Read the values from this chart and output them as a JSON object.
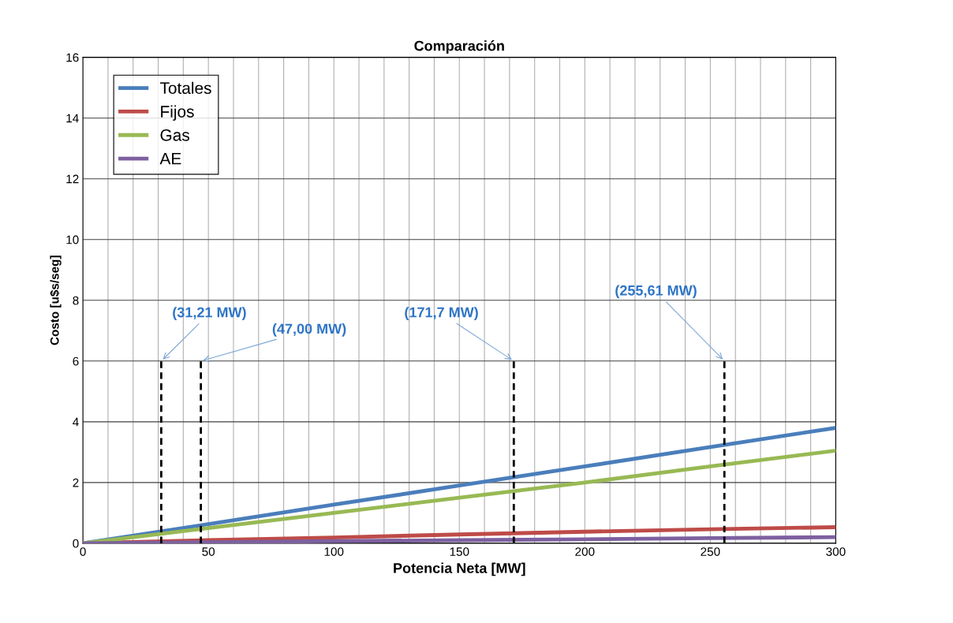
{
  "chart_data": {
    "type": "line",
    "title": "Comparación",
    "xlabel": "Potencia Neta [MW]",
    "ylabel": "Costo [u$s/seg]",
    "x": [
      0,
      50,
      100,
      150,
      200,
      250,
      300
    ],
    "series": [
      {
        "name": "Totales",
        "color": "#4a7ebb",
        "values": [
          0,
          0.63,
          1.27,
          1.9,
          2.53,
          3.17,
          3.8
        ]
      },
      {
        "name": "Fijos",
        "color": "#be4b48",
        "values": [
          0,
          0.1,
          0.19,
          0.29,
          0.38,
          0.46,
          0.53
        ]
      },
      {
        "name": "Gas",
        "color": "#98b954",
        "values": [
          0,
          0.5,
          1.0,
          1.5,
          2.0,
          2.53,
          3.05
        ]
      },
      {
        "name": "AE",
        "color": "#7d60a0",
        "values": [
          0,
          0.03,
          0.07,
          0.1,
          0.13,
          0.17,
          0.2
        ]
      },
      {
        "color": "#000000",
        "line_style": "dashed",
        "x": [
          31.21,
          31.21
        ],
        "values": [
          0,
          6
        ]
      },
      {
        "color": "#000000",
        "line_style": "dashed",
        "x": [
          47.0,
          47.0
        ],
        "values": [
          0,
          6
        ]
      },
      {
        "color": "#000000",
        "line_style": "dashed",
        "x": [
          171.7,
          171.7
        ],
        "values": [
          0,
          6
        ]
      },
      {
        "color": "#000000",
        "line_style": "dashed",
        "x": [
          255.61,
          255.61
        ],
        "values": [
          0,
          6
        ]
      }
    ],
    "annotations": [
      {
        "text": "(31,21 MW)",
        "x": 31.21,
        "y": 6
      },
      {
        "text": "(47,00 MW)",
        "x": 47.0,
        "y": 6
      },
      {
        "text": "(171,7 MW)",
        "x": 171.7,
        "y": 6
      },
      {
        "text": "(255,61 MW)",
        "x": 255.61,
        "y": 6
      }
    ],
    "xlim": [
      0,
      300
    ],
    "xticks": [
      0,
      {
        "value": 10,
        "label": null
      },
      {
        "value": 20,
        "label": null
      },
      {
        "value": 30,
        "label": null
      },
      {
        "value": 40,
        "label": null
      },
      50,
      {
        "value": 60,
        "label": null
      },
      {
        "value": 70,
        "label": null
      },
      {
        "value": 80,
        "label": null
      },
      {
        "value": 90,
        "label": null
      },
      100,
      {
        "value": 110,
        "label": null
      },
      {
        "value": 120,
        "label": null
      },
      {
        "value": 130,
        "label": null
      },
      {
        "value": 140,
        "label": null
      },
      150,
      {
        "value": 160,
        "label": null
      },
      {
        "value": 170,
        "label": null
      },
      {
        "value": 180,
        "label": null
      },
      {
        "value": 190,
        "label": null
      },
      200,
      {
        "value": 210,
        "label": null
      },
      {
        "value": 220,
        "label": null
      },
      {
        "value": 230,
        "label": null
      },
      {
        "value": 240,
        "label": null
      },
      250,
      {
        "value": 260,
        "label": null
      },
      {
        "value": 270,
        "label": null
      },
      {
        "value": 280,
        "label": null
      },
      {
        "value": 290,
        "label": null
      },
      300
    ],
    "ylim": [
      0,
      16
    ],
    "yticks": [
      0,
      2,
      4,
      6,
      8,
      10,
      12,
      14,
      16
    ],
    "grid": true,
    "legend": "top left",
    "line_style": "solid",
    "marker": "none"
  }
}
